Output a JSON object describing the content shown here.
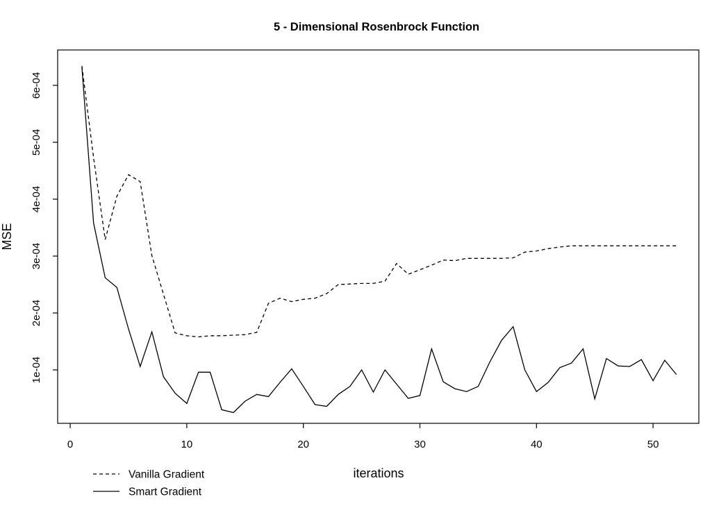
{
  "title": "5 - Dimensional Rosenbrock Function",
  "axes": {
    "x": {
      "label": "iterations",
      "tick_values": [
        0,
        10,
        20,
        30,
        40,
        50
      ]
    },
    "y": {
      "label": "MSE",
      "tick_values": [
        0.0001,
        0.0002,
        0.0003,
        0.0004,
        0.0005,
        0.0006
      ],
      "tick_labels": [
        "1e-04",
        "2e-04",
        "3e-04",
        "4e-04",
        "5e-04",
        "6e-04"
      ]
    }
  },
  "legend": [
    {
      "label": "Vanilla Gradient",
      "style": "dashed"
    },
    {
      "label": "Smart Gradient",
      "style": "solid"
    }
  ],
  "colors": {
    "line": "#000000",
    "frame": "#000000",
    "background": "#ffffff"
  },
  "chart_data": {
    "type": "line",
    "title": "5 - Dimensional Rosenbrock Function",
    "xlabel": "iterations",
    "ylabel": "MSE",
    "grid": false,
    "legend_position": "bottom-left",
    "xlim": [
      -1.1,
      53.9
    ],
    "ylim": [
      6e-06,
      0.000662
    ],
    "x_ticks": [
      0,
      10,
      20,
      30,
      40,
      50
    ],
    "y_ticks": [
      0.0001,
      0.0002,
      0.0003,
      0.0004,
      0.0005,
      0.0006
    ],
    "y_tick_labels": [
      "1e-04",
      "2e-04",
      "3e-04",
      "4e-04",
      "5e-04",
      "6e-04"
    ],
    "x": [
      1,
      2,
      3,
      4,
      5,
      6,
      7,
      8,
      9,
      10,
      11,
      12,
      13,
      14,
      15,
      16,
      17,
      18,
      19,
      20,
      21,
      22,
      23,
      24,
      25,
      26,
      27,
      28,
      29,
      30,
      31,
      32,
      33,
      34,
      35,
      36,
      37,
      38,
      39,
      40,
      41,
      42,
      43,
      44,
      45,
      46,
      47,
      48,
      49,
      50,
      51,
      52
    ],
    "series": [
      {
        "name": "Vanilla Gradient",
        "line_style": "dashed",
        "color": "#000000",
        "values": [
          0.000634,
          0.000473,
          0.000329,
          0.000405,
          0.000443,
          0.000431,
          0.000301,
          0.000233,
          0.000165,
          0.00016,
          0.000158,
          0.00016,
          0.00016,
          0.000161,
          0.000162,
          0.000166,
          0.000217,
          0.000226,
          0.00022,
          0.000224,
          0.000226,
          0.000234,
          0.00025,
          0.000251,
          0.000252,
          0.000252,
          0.000256,
          0.000287,
          0.000268,
          0.000276,
          0.000284,
          0.000293,
          0.000292,
          0.000296,
          0.000296,
          0.000296,
          0.000296,
          0.000297,
          0.000307,
          0.000309,
          0.000313,
          0.000316,
          0.000318,
          0.000318,
          0.000318,
          0.000318,
          0.000318,
          0.000318,
          0.000318,
          0.000318,
          0.000318,
          0.000318
        ]
      },
      {
        "name": "Smart Gradient",
        "line_style": "solid",
        "color": "#000000",
        "values": [
          0.000632,
          0.000358,
          0.000262,
          0.000245,
          0.000172,
          0.000106,
          0.000167,
          8.8e-05,
          5.9e-05,
          4.1e-05,
          9.6e-05,
          9.6e-05,
          3e-05,
          2.5e-05,
          4.5e-05,
          5.7e-05,
          5.3e-05,
          7.8e-05,
          0.000102,
          7.1e-05,
          3.9e-05,
          3.6e-05,
          5.7e-05,
          7.1e-05,
          0.0001,
          6.1e-05,
          0.0001,
          7.5e-05,
          5e-05,
          5.5e-05,
          0.000137,
          7.9e-05,
          6.7e-05,
          6.2e-05,
          7.1e-05,
          0.000114,
          0.000152,
          0.000176,
          0.0001,
          6.2e-05,
          7.8e-05,
          0.000104,
          0.000112,
          0.000137,
          4.9e-05,
          0.00012,
          0.000107,
          0.000106,
          0.000118,
          8.1e-05,
          0.000117,
          9.2e-05
        ]
      }
    ]
  }
}
